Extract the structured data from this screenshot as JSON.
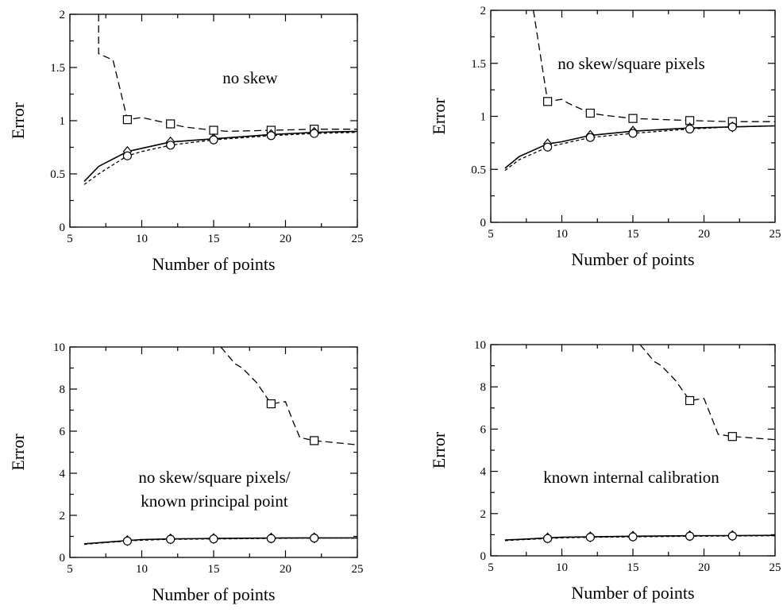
{
  "chart_data": [
    {
      "type": "line",
      "annotation": [
        "no skew"
      ],
      "xlabel": "Number of points",
      "ylabel": "Error",
      "xlim": [
        5,
        25
      ],
      "ylim": [
        0,
        2
      ],
      "xticks": [
        5,
        10,
        15,
        20,
        25
      ],
      "yticks": [
        0,
        0.5,
        1,
        1.5,
        2
      ],
      "ytick_labels": [
        "0",
        "0.5",
        "1",
        "1.5",
        "2"
      ],
      "grid": false,
      "series": [
        {
          "style": "dashed",
          "marker": "square",
          "x": [
            7,
            7,
            8,
            9,
            10,
            12,
            13,
            15,
            16,
            19,
            22,
            25
          ],
          "y": [
            2,
            1.63,
            1.57,
            1.01,
            1.03,
            0.97,
            0.94,
            0.91,
            0.9,
            0.91,
            0.92,
            0.92
          ],
          "marker_x": [
            9,
            12,
            15,
            19,
            22
          ]
        },
        {
          "style": "solid",
          "marker": "diamond",
          "x": [
            6,
            7,
            9,
            10,
            12,
            15,
            19,
            22,
            25
          ],
          "y": [
            0.43,
            0.57,
            0.71,
            0.74,
            0.8,
            0.83,
            0.87,
            0.89,
            0.9
          ],
          "marker_x": [
            9,
            12,
            15,
            19,
            22
          ]
        },
        {
          "style": "dotted",
          "marker": "circle",
          "x": [
            6,
            7,
            9,
            10,
            12,
            15,
            19,
            22,
            25
          ],
          "y": [
            0.4,
            0.5,
            0.67,
            0.71,
            0.77,
            0.82,
            0.86,
            0.88,
            0.89
          ],
          "marker_x": [
            9,
            12,
            15,
            19,
            22
          ]
        }
      ]
    },
    {
      "type": "line",
      "annotation": [
        "no skew/square pixels"
      ],
      "xlabel": "Number of points",
      "ylabel": "Error",
      "xlim": [
        5,
        25
      ],
      "ylim": [
        0,
        2
      ],
      "xticks": [
        5,
        10,
        15,
        20,
        25
      ],
      "yticks": [
        0,
        0.5,
        1,
        1.5,
        2
      ],
      "ytick_labels": [
        "0",
        "0.5",
        "1",
        "1.5",
        "2"
      ],
      "grid": false,
      "series": [
        {
          "style": "dashed",
          "marker": "square",
          "x": [
            8,
            9,
            10,
            10.5,
            12,
            13,
            15,
            19,
            22,
            25
          ],
          "y": [
            2,
            1.14,
            1.16,
            1.12,
            1.03,
            1.01,
            0.98,
            0.96,
            0.95,
            0.95
          ],
          "marker_x": [
            9,
            12,
            15,
            19,
            22
          ]
        },
        {
          "style": "solid",
          "marker": "diamond",
          "x": [
            6,
            7,
            9,
            10,
            12,
            15,
            19,
            22,
            25
          ],
          "y": [
            0.51,
            0.62,
            0.74,
            0.76,
            0.82,
            0.86,
            0.89,
            0.9,
            0.91
          ],
          "marker_x": [
            9,
            12,
            15,
            19,
            22
          ]
        },
        {
          "style": "dotted",
          "marker": "circle",
          "x": [
            6,
            7,
            9,
            10,
            12,
            15,
            19,
            22,
            25
          ],
          "y": [
            0.49,
            0.59,
            0.71,
            0.74,
            0.8,
            0.84,
            0.88,
            0.9,
            0.91
          ],
          "marker_x": [
            9,
            12,
            15,
            19,
            22
          ]
        }
      ]
    },
    {
      "type": "line",
      "annotation": [
        "no skew/square pixels/",
        "known principal point"
      ],
      "xlabel": "Number of points",
      "ylabel": "Error",
      "xlim": [
        5,
        25
      ],
      "ylim": [
        0,
        10
      ],
      "xticks": [
        5,
        10,
        15,
        20,
        25
      ],
      "yticks": [
        0,
        2,
        4,
        6,
        8,
        10
      ],
      "ytick_labels": [
        "0",
        "2",
        "4",
        "6",
        "8",
        "10"
      ],
      "grid": false,
      "series": [
        {
          "style": "dashed",
          "marker": "square",
          "x": [
            15.5,
            16,
            16.5,
            17,
            18,
            19,
            20,
            20.5,
            21,
            22,
            25
          ],
          "y": [
            10,
            9.6,
            9.2,
            9.0,
            8.3,
            7.3,
            7.4,
            6.5,
            5.7,
            5.55,
            5.35
          ],
          "marker_x": [
            19,
            22
          ]
        },
        {
          "style": "solid",
          "marker": "diamond",
          "x": [
            6,
            7,
            9,
            10,
            12,
            15,
            19,
            22,
            25
          ],
          "y": [
            0.65,
            0.7,
            0.8,
            0.85,
            0.88,
            0.9,
            0.92,
            0.93,
            0.93
          ],
          "marker_x": [
            9,
            12,
            15,
            19,
            22
          ]
        },
        {
          "style": "dotted",
          "marker": "circle",
          "x": [
            6,
            7,
            9,
            10,
            12,
            15,
            19,
            22,
            25
          ],
          "y": [
            0.62,
            0.68,
            0.78,
            0.82,
            0.86,
            0.88,
            0.9,
            0.92,
            0.92
          ],
          "marker_x": [
            9,
            12,
            15,
            19,
            22
          ]
        }
      ]
    },
    {
      "type": "line",
      "annotation": [
        "known internal calibration"
      ],
      "xlabel": "Number of points",
      "ylabel": "Error",
      "xlim": [
        5,
        25
      ],
      "ylim": [
        0,
        10
      ],
      "xticks": [
        5,
        10,
        15,
        20,
        25
      ],
      "yticks": [
        0,
        2,
        4,
        6,
        8,
        10
      ],
      "ytick_labels": [
        "0",
        "2",
        "4",
        "6",
        "8",
        "10"
      ],
      "grid": false,
      "series": [
        {
          "style": "dashed",
          "marker": "square",
          "x": [
            15.5,
            16,
            16.5,
            17,
            18,
            19,
            20,
            20.5,
            21,
            22,
            25
          ],
          "y": [
            10,
            9.6,
            9.2,
            9.0,
            8.3,
            7.35,
            7.45,
            6.6,
            5.75,
            5.65,
            5.5
          ],
          "marker_x": [
            19,
            22
          ]
        },
        {
          "style": "solid",
          "marker": "diamond",
          "x": [
            6,
            7,
            9,
            10,
            12,
            15,
            19,
            22,
            25
          ],
          "y": [
            0.75,
            0.78,
            0.85,
            0.88,
            0.9,
            0.93,
            0.95,
            0.96,
            0.97
          ],
          "marker_x": [
            9,
            12,
            15,
            19,
            22
          ]
        },
        {
          "style": "dotted",
          "marker": "circle",
          "x": [
            6,
            7,
            9,
            10,
            12,
            15,
            19,
            22,
            25
          ],
          "y": [
            0.72,
            0.76,
            0.82,
            0.85,
            0.88,
            0.9,
            0.93,
            0.94,
            0.95
          ],
          "marker_x": [
            9,
            12,
            15,
            19,
            22
          ]
        }
      ]
    }
  ]
}
